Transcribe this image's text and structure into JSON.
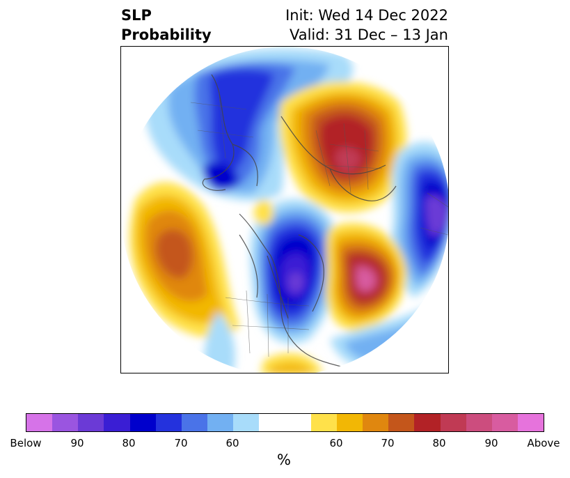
{
  "title": {
    "left_line1": "SLP",
    "left_line2": "Probability",
    "right_line1": "Init: Wed 14 Dec 2022",
    "right_line2": "Valid: 31 Dec – 13 Jan"
  },
  "colorbar": {
    "colors": [
      "#d673e8",
      "#9a55e0",
      "#6b3ad6",
      "#3a1ed4",
      "#0000cc",
      "#2432dd",
      "#4a73e8",
      "#72b0f2",
      "#a8dcfa",
      "#ffffff",
      "#ffffff",
      "#ffe14a",
      "#f2b705",
      "#e0870f",
      "#c4561b",
      "#b22226",
      "#c03a54",
      "#cc4d7e",
      "#d85ca0",
      "#e673dc"
    ],
    "tick_labels": [
      "Below",
      "90",
      "80",
      "70",
      "60",
      "60",
      "70",
      "80",
      "90",
      "Above"
    ],
    "unit_label": "%"
  }
}
